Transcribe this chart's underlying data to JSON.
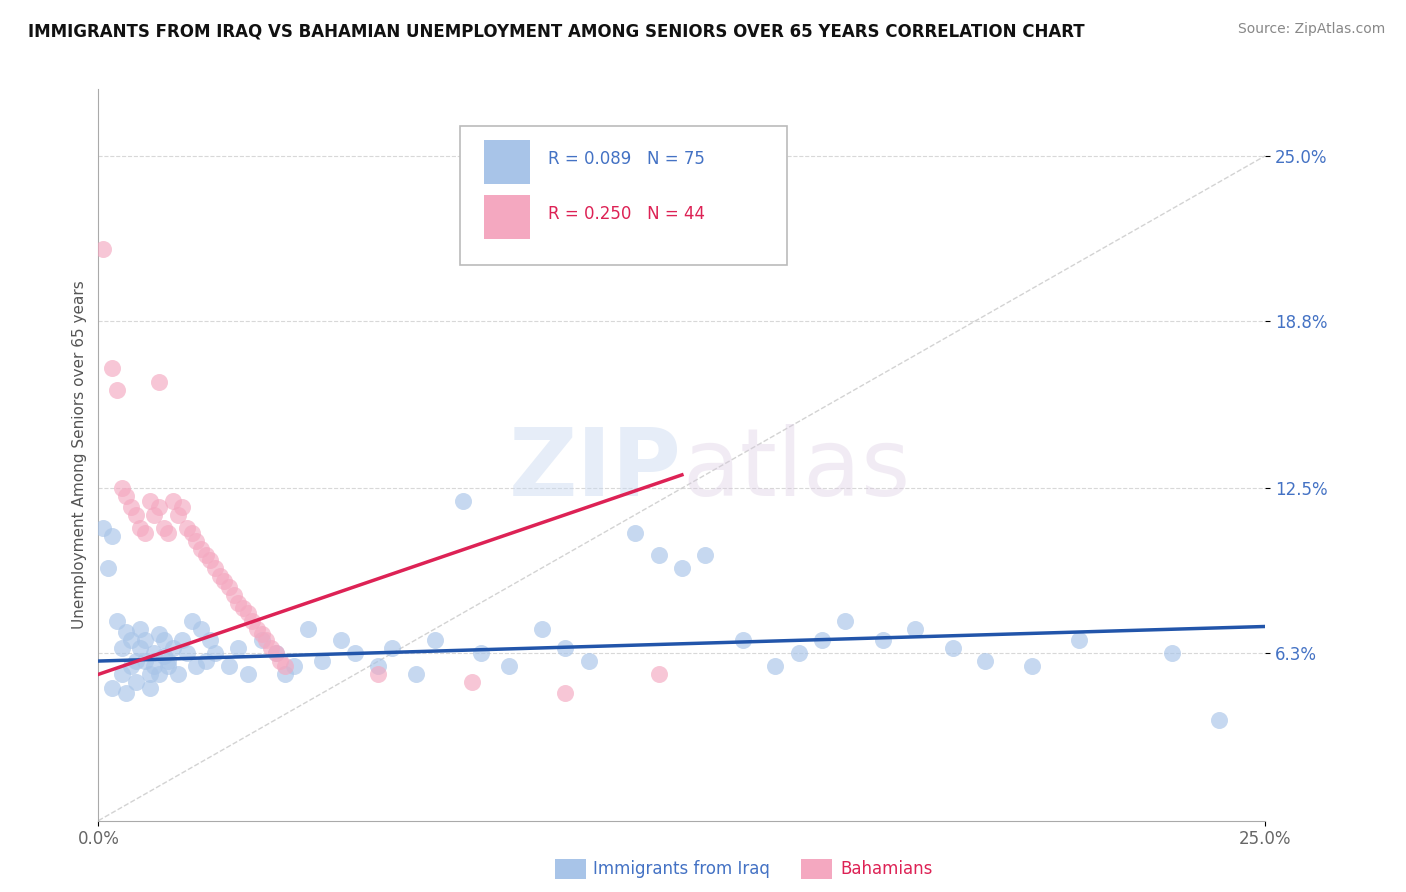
{
  "title": "IMMIGRANTS FROM IRAQ VS BAHAMIAN UNEMPLOYMENT AMONG SENIORS OVER 65 YEARS CORRELATION CHART",
  "source": "Source: ZipAtlas.com",
  "ylabel": "Unemployment Among Seniors over 65 years",
  "yticks": [
    0.063,
    0.125,
    0.188,
    0.25
  ],
  "ytick_labels": [
    "6.3%",
    "12.5%",
    "18.8%",
    "25.0%"
  ],
  "xlim": [
    0.0,
    0.25
  ],
  "ylim": [
    0.0,
    0.275
  ],
  "legend_iraq_r": "R = 0.089",
  "legend_iraq_n": "N = 75",
  "legend_bah_r": "R = 0.250",
  "legend_bah_n": "N = 44",
  "color_iraq": "#a8c4e8",
  "color_bah": "#f4a8c0",
  "color_trendline_iraq": "#2255aa",
  "color_trendline_bah": "#dd2255",
  "watermark_zip": "ZIP",
  "watermark_atlas": "atlas",
  "blue_scatter": [
    [
      0.001,
      0.11
    ],
    [
      0.002,
      0.095
    ],
    [
      0.003,
      0.107
    ],
    [
      0.003,
      0.05
    ],
    [
      0.004,
      0.075
    ],
    [
      0.005,
      0.065
    ],
    [
      0.005,
      0.055
    ],
    [
      0.006,
      0.048
    ],
    [
      0.006,
      0.071
    ],
    [
      0.007,
      0.068
    ],
    [
      0.007,
      0.058
    ],
    [
      0.008,
      0.06
    ],
    [
      0.008,
      0.052
    ],
    [
      0.009,
      0.065
    ],
    [
      0.009,
      0.072
    ],
    [
      0.01,
      0.06
    ],
    [
      0.01,
      0.068
    ],
    [
      0.011,
      0.055
    ],
    [
      0.011,
      0.05
    ],
    [
      0.012,
      0.063
    ],
    [
      0.012,
      0.058
    ],
    [
      0.013,
      0.055
    ],
    [
      0.013,
      0.07
    ],
    [
      0.014,
      0.062
    ],
    [
      0.014,
      0.068
    ],
    [
      0.015,
      0.06
    ],
    [
      0.015,
      0.058
    ],
    [
      0.016,
      0.065
    ],
    [
      0.017,
      0.055
    ],
    [
      0.018,
      0.068
    ],
    [
      0.019,
      0.063
    ],
    [
      0.02,
      0.075
    ],
    [
      0.021,
      0.058
    ],
    [
      0.022,
      0.072
    ],
    [
      0.023,
      0.06
    ],
    [
      0.024,
      0.068
    ],
    [
      0.025,
      0.063
    ],
    [
      0.028,
      0.058
    ],
    [
      0.03,
      0.065
    ],
    [
      0.032,
      0.055
    ],
    [
      0.035,
      0.068
    ],
    [
      0.038,
      0.063
    ],
    [
      0.04,
      0.055
    ],
    [
      0.042,
      0.058
    ],
    [
      0.045,
      0.072
    ],
    [
      0.048,
      0.06
    ],
    [
      0.052,
      0.068
    ],
    [
      0.055,
      0.063
    ],
    [
      0.06,
      0.058
    ],
    [
      0.063,
      0.065
    ],
    [
      0.068,
      0.055
    ],
    [
      0.072,
      0.068
    ],
    [
      0.078,
      0.12
    ],
    [
      0.082,
      0.063
    ],
    [
      0.088,
      0.058
    ],
    [
      0.095,
      0.072
    ],
    [
      0.1,
      0.065
    ],
    [
      0.105,
      0.06
    ],
    [
      0.115,
      0.108
    ],
    [
      0.12,
      0.1
    ],
    [
      0.125,
      0.095
    ],
    [
      0.13,
      0.1
    ],
    [
      0.138,
      0.068
    ],
    [
      0.145,
      0.058
    ],
    [
      0.15,
      0.063
    ],
    [
      0.16,
      0.075
    ],
    [
      0.168,
      0.068
    ],
    [
      0.175,
      0.072
    ],
    [
      0.183,
      0.065
    ],
    [
      0.19,
      0.06
    ],
    [
      0.2,
      0.058
    ],
    [
      0.21,
      0.068
    ],
    [
      0.23,
      0.063
    ],
    [
      0.24,
      0.038
    ],
    [
      0.155,
      0.068
    ]
  ],
  "pink_scatter": [
    [
      0.001,
      0.215
    ],
    [
      0.003,
      0.17
    ],
    [
      0.004,
      0.162
    ],
    [
      0.005,
      0.125
    ],
    [
      0.006,
      0.122
    ],
    [
      0.007,
      0.118
    ],
    [
      0.008,
      0.115
    ],
    [
      0.009,
      0.11
    ],
    [
      0.01,
      0.108
    ],
    [
      0.011,
      0.12
    ],
    [
      0.012,
      0.115
    ],
    [
      0.013,
      0.118
    ],
    [
      0.014,
      0.11
    ],
    [
      0.015,
      0.108
    ],
    [
      0.016,
      0.12
    ],
    [
      0.017,
      0.115
    ],
    [
      0.018,
      0.118
    ],
    [
      0.019,
      0.11
    ],
    [
      0.02,
      0.108
    ],
    [
      0.021,
      0.105
    ],
    [
      0.022,
      0.102
    ],
    [
      0.023,
      0.1
    ],
    [
      0.024,
      0.098
    ],
    [
      0.025,
      0.095
    ],
    [
      0.026,
      0.092
    ],
    [
      0.027,
      0.09
    ],
    [
      0.028,
      0.088
    ],
    [
      0.029,
      0.085
    ],
    [
      0.03,
      0.082
    ],
    [
      0.031,
      0.08
    ],
    [
      0.032,
      0.078
    ],
    [
      0.033,
      0.075
    ],
    [
      0.034,
      0.072
    ],
    [
      0.035,
      0.07
    ],
    [
      0.036,
      0.068
    ],
    [
      0.037,
      0.065
    ],
    [
      0.038,
      0.063
    ],
    [
      0.039,
      0.06
    ],
    [
      0.04,
      0.058
    ],
    [
      0.06,
      0.055
    ],
    [
      0.08,
      0.052
    ],
    [
      0.1,
      0.048
    ],
    [
      0.12,
      0.055
    ],
    [
      0.013,
      0.165
    ]
  ],
  "blue_trend_x": [
    0.0,
    0.25
  ],
  "blue_trend_y": [
    0.06,
    0.073
  ],
  "pink_trend_x": [
    0.0,
    0.125
  ],
  "pink_trend_y": [
    0.055,
    0.13
  ],
  "diag_line_x": [
    0.0,
    0.25
  ],
  "diag_line_y": [
    0.0,
    0.25
  ]
}
